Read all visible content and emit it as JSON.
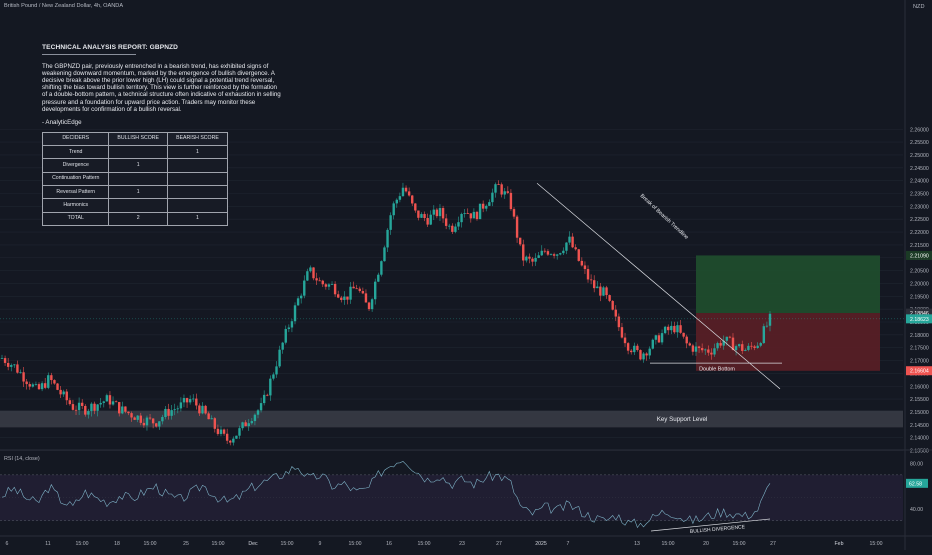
{
  "header": {
    "symbol": "British Pound / New Zealand Dollar, 4h, OANDA",
    "currency": "NZD"
  },
  "report": {
    "title": "TECHNICAL ANALYSIS REPORT: GBPNZD",
    "body": "The GBPNZD pair, previously entrenched in a bearish trend, has exhibited signs of weakening downward momentum, marked by the emergence of bullish divergence. A decisive break above the prior lower high (LH) could signal a potential trend reversal, shifting the bias toward bullish territory. This view is further reinforced by the formation of a double-bottom pattern, a technical structure often indicative of exhaustion in selling pressure and a foundation for upward price action. Traders may monitor these developments for confirmation of a bullish reversal.",
    "signature": "- AnalyticEdge",
    "table": {
      "headers": [
        "DECIDERS",
        "BULLISH SCORE",
        "BEARISH SCORE"
      ],
      "rows": [
        [
          "Trend",
          "",
          "1"
        ],
        [
          "Divergence",
          "1",
          ""
        ],
        [
          "Continuation Pattern",
          "",
          ""
        ],
        [
          "Reversal Pattern",
          "1",
          ""
        ],
        [
          "Harmonics",
          "",
          ""
        ],
        [
          "TOTAL",
          "2",
          "1"
        ]
      ]
    }
  },
  "annotations": {
    "trendline": "Break of Bearish Trendline",
    "double_bottom": "Double Bottom",
    "support": "Key Support Level",
    "divergence": "BULLISH DIVERGENCE"
  },
  "rsi_panel": {
    "label": "RSI (14, close)",
    "value_label": "62.58",
    "ticks": [
      "80.00",
      "40.00"
    ]
  },
  "price_labels": {
    "target": "2.21090",
    "entry": "2.18846",
    "current": "2.18623",
    "stop": "2.16604"
  },
  "colors": {
    "background": "#141822",
    "up": "#26a69a",
    "down": "#ef5350",
    "profit_zone": "#1f4f2d",
    "loss_zone": "#5a1f26",
    "support_zone": "#3a3d46",
    "rsi_line": "#7fb3c8"
  },
  "chart_data": {
    "type": "candlestick",
    "timeframe": "4h",
    "y_axis_ticks": [
      "2.26000",
      "2.25500",
      "2.25000",
      "2.24500",
      "2.24000",
      "2.23500",
      "2.23000",
      "2.22500",
      "2.22000",
      "2.21500",
      "2.21000",
      "2.20500",
      "2.20000",
      "2.19500",
      "2.19000",
      "2.18500",
      "2.18000",
      "2.17500",
      "2.17000",
      "2.16500",
      "2.16000",
      "2.15500",
      "2.15000",
      "2.14500",
      "2.14000",
      "2.13500"
    ],
    "x_axis_ticks": [
      "6",
      "11",
      "15:00",
      "18",
      "15:00",
      "25",
      "15:00",
      "Dec",
      "15:00",
      "9",
      "15:00",
      "16",
      "15:00",
      "23",
      "27",
      "2025",
      "7",
      "13",
      "15:00",
      "20",
      "15:00",
      "27",
      "Feb",
      "15:00"
    ],
    "ylim": [
      2.1325,
      2.263
    ],
    "price_path": [
      2.171,
      2.168,
      2.163,
      2.158,
      2.163,
      2.157,
      2.152,
      2.151,
      2.153,
      2.155,
      2.151,
      2.149,
      2.147,
      2.146,
      2.15,
      2.152,
      2.155,
      2.15,
      2.144,
      2.139,
      2.142,
      2.148,
      2.152,
      2.166,
      2.18,
      2.193,
      2.205,
      2.2,
      2.199,
      2.194,
      2.199,
      2.19,
      2.208,
      2.229,
      2.238,
      2.227,
      2.225,
      2.228,
      2.221,
      2.229,
      2.226,
      2.232,
      2.238,
      2.232,
      2.21,
      2.208,
      2.213,
      2.212,
      2.217,
      2.207,
      2.199,
      2.196,
      2.185,
      2.176,
      2.172,
      2.176,
      2.181,
      2.183,
      2.176,
      2.174,
      2.174,
      2.178,
      2.176,
      2.174,
      2.177,
      2.186
    ],
    "zones": {
      "take_profit": [
        2.1885,
        2.2109
      ],
      "stop_loss": [
        2.166,
        2.1885
      ],
      "key_support": [
        2.144,
        2.1505
      ]
    },
    "trendline": [
      [
        2.239
      ],
      [
        2.159
      ]
    ],
    "double_bottom_level": 2.169,
    "rsi": {
      "ylim": [
        20,
        90
      ],
      "levels": [
        70,
        30
      ],
      "values": [
        52,
        58,
        50,
        45,
        60,
        48,
        42,
        55,
        50,
        46,
        52,
        49,
        55,
        60,
        52,
        48,
        54,
        61,
        52,
        46,
        50,
        58,
        63,
        67,
        72,
        78,
        66,
        70,
        60,
        62,
        55,
        58,
        72,
        80,
        85,
        74,
        66,
        70,
        62,
        66,
        62,
        68,
        70,
        64,
        40,
        36,
        42,
        39,
        44,
        38,
        33,
        30,
        35,
        28,
        27,
        32,
        38,
        36,
        30,
        31,
        35,
        38,
        36,
        34,
        40,
        62.58
      ]
    }
  }
}
